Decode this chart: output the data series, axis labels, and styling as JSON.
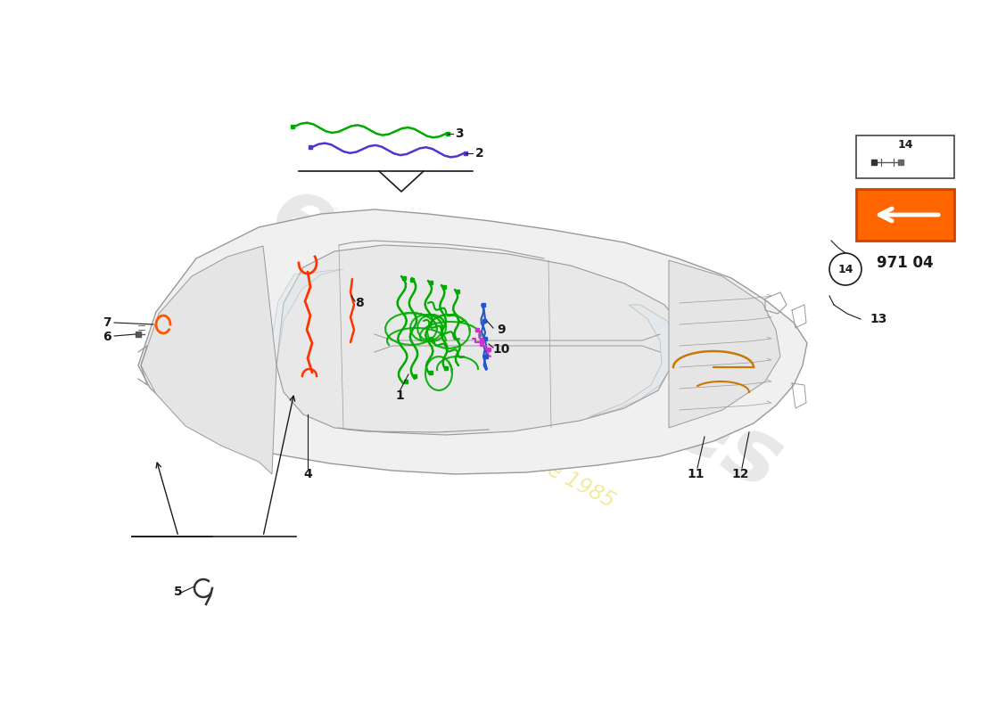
{
  "page_code": "971 04",
  "background_color": "#ffffff",
  "car_color": "#999999",
  "car_lw": 1.0,
  "wiring_colors": {
    "1": "#00aa00",
    "2": "#5533cc",
    "3": "#00aa00",
    "4": "#ff3300",
    "7": "#ff5500",
    "8": "#ff3300",
    "9": "#2255cc",
    "10": "#cc33cc",
    "11": "#cc7700",
    "12": "#cc7700"
  },
  "label_fontsize": 10,
  "watermark_color": "#cccccc",
  "watermark_subcolor": "#e8e070",
  "nav_color": "#ff6600",
  "nav_border": "#cc4400",
  "label_color": "#1a1a1a"
}
